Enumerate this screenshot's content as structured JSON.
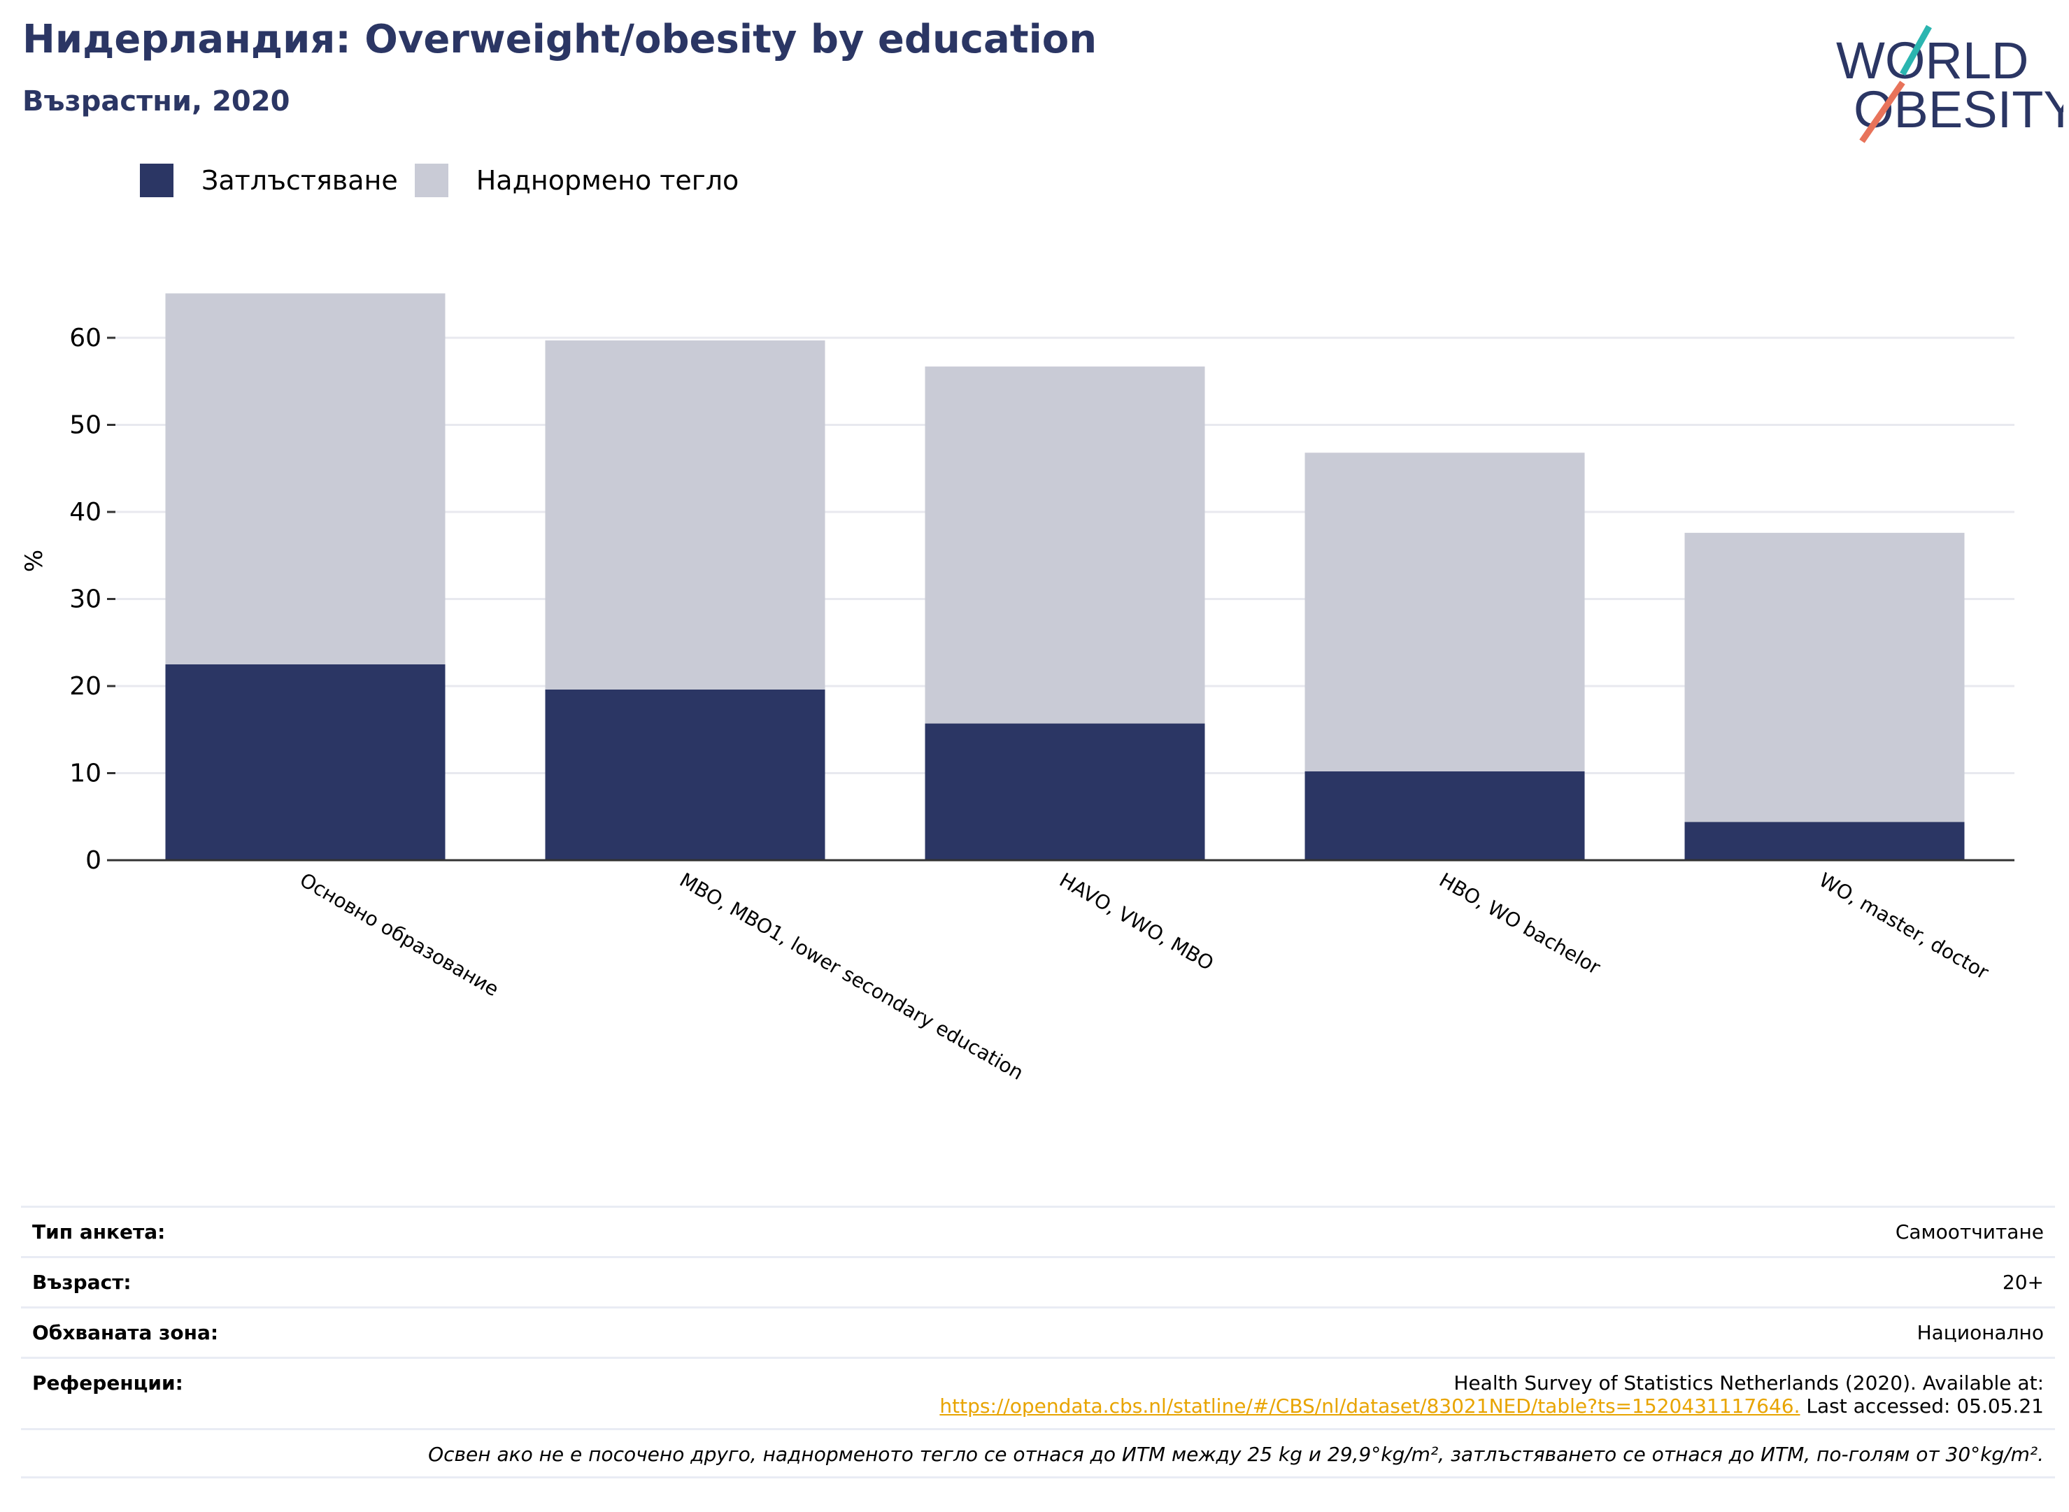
{
  "header": {
    "title": "Нидерландия: Overweight/obesity by education",
    "subtitle": "Възрастни, 2020"
  },
  "logo": {
    "line1": "WORLD",
    "line2": "OBESITY"
  },
  "colors": {
    "obesity": "#2b3664",
    "overweight": "#c9cbd6",
    "brand": "#2b3664",
    "logo_teal": "#2bb5b0",
    "logo_red": "#e8735a",
    "link": "#e8a400"
  },
  "legend": [
    {
      "label": "Затлъстяване",
      "color": "#2b3664"
    },
    {
      "label": "Наднормено тегло",
      "color": "#c9cbd6"
    }
  ],
  "chart_data": {
    "type": "bar",
    "stacked": true,
    "categories": [
      "Основно образование",
      "MBO, MBO1, lower secondary education",
      "HAVO, VWO, MBO",
      "HBO, WO bachelor",
      "WO, master, doctor"
    ],
    "series": [
      {
        "name": "Затлъстяване",
        "values": [
          22.5,
          19.6,
          15.7,
          10.2,
          4.4
        ]
      },
      {
        "name": "Наднормено тегло",
        "values": [
          42.6,
          40.1,
          41.0,
          36.6,
          33.2
        ]
      }
    ],
    "totals": [
      65.1,
      59.7,
      56.7,
      46.8,
      37.6
    ],
    "ylabel": "%",
    "yticks": [
      0,
      10,
      20,
      30,
      40,
      50,
      60
    ],
    "ylim": [
      0,
      65.1
    ],
    "grid": true,
    "legend_position": "top-left"
  },
  "info": {
    "survey_label": "Тип анкета:",
    "survey_value": "Самоотчитане",
    "age_label": "Възраст:",
    "age_value": "20+",
    "area_label": "Обхваната зона:",
    "area_value": "Национално",
    "refs_label": "Референции:",
    "refs_text": "Health Survey of Statistics Netherlands (2020). Available at:",
    "refs_link": "https://opendata.cbs.nl/statline/#/CBS/nl/dataset/83021NED/table?ts=1520431117646.",
    "refs_accessed": " Last accessed: 05.05.21",
    "note": "Освен ако не е посочено друго, наднорменото тегло се отнася до ИТМ между 25 kg и 29,9°kg/m², затлъстяването се отнася до ИТМ, по-голям от 30°kg/m²."
  }
}
